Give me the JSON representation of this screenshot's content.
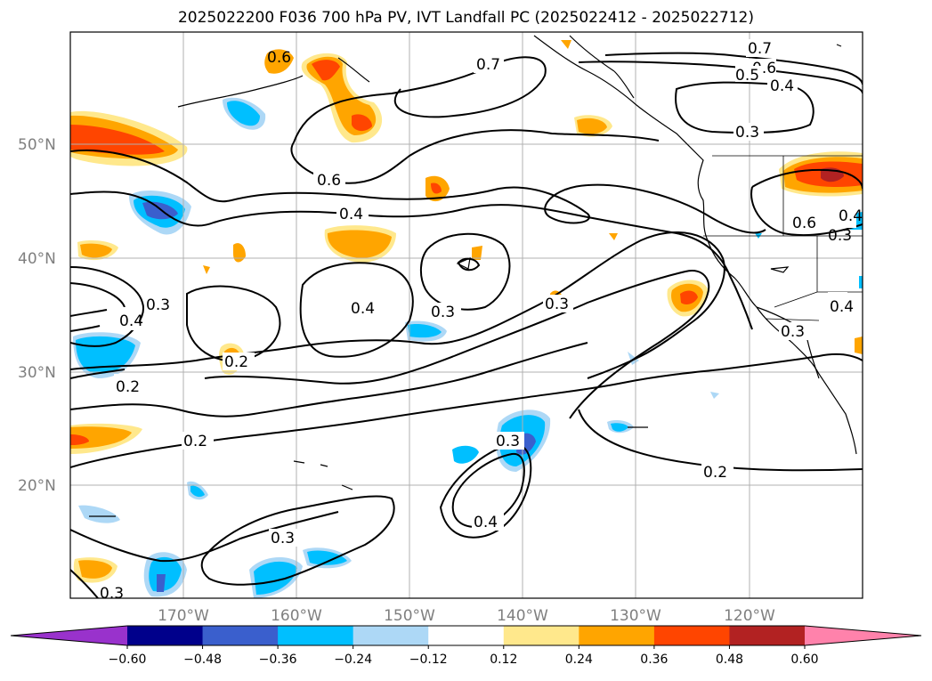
{
  "title": "2025022200 F036 700 hPa PV, IVT Landfall PC (2025022412 - 2025022712)",
  "lat_labels": [
    "50°N",
    "40°N",
    "30°N",
    "20°N"
  ],
  "lon_labels": [
    "170°W",
    "160°W",
    "150°W",
    "140°W",
    "130°W",
    "120°W"
  ],
  "colorbar": {
    "tick_labels": [
      "−0.60",
      "−0.48",
      "−0.36",
      "−0.24",
      "−0.12",
      "0.12",
      "0.24",
      "0.36",
      "0.48",
      "0.60"
    ],
    "colors": [
      "#9932cc",
      "#00008b",
      "#3a5fcd",
      "#00bfff",
      "#add8f6",
      "#ffffff",
      "#ffe88c",
      "#ffa500",
      "#ff4500",
      "#b22222",
      "#ff82ab"
    ]
  },
  "contour_labels": [
    "0.7",
    "0.6",
    "0.5",
    "0.4",
    "0.3",
    "0.6",
    "0.7",
    "0.6",
    "0.4",
    "0.4",
    "0.3",
    "0.3",
    "0.6",
    "0.4",
    "0.3",
    "0.4",
    "0.3",
    "0.2",
    "0.2",
    "0.2",
    "0.3",
    "0.2",
    "0.3",
    "0.4",
    "0.4",
    "0.3",
    "0.3"
  ]
}
